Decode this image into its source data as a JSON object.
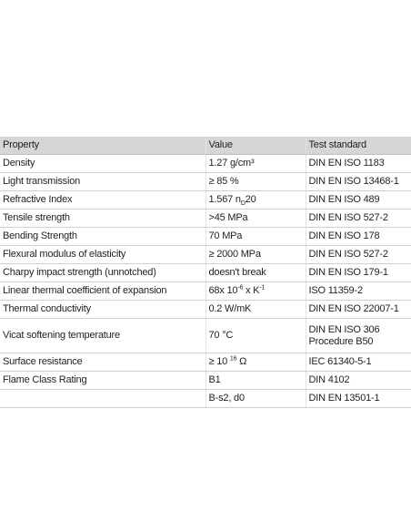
{
  "table": {
    "header": [
      "Property",
      "Value",
      "Test standard"
    ],
    "rows": [
      [
        "Density",
        "1.27 g/cm³",
        "DIN EN ISO 1183"
      ],
      [
        "Light transmission",
        "≥ 85 %",
        "DIN EN ISO 13468-1"
      ],
      [
        "Refractive Index",
        {
          "runs": [
            {
              "text": "1.567 n"
            },
            {
              "text": "D",
              "sub": true
            },
            {
              "text": "20"
            }
          ]
        },
        "DIN EN ISO 489"
      ],
      [
        "Tensile strength",
        ">45 MPa",
        "DIN EN ISO 527-2"
      ],
      [
        "Bending Strength",
        "70 MPa",
        "DIN EN ISO 178"
      ],
      [
        "Flexural modulus of elasticity",
        "≥ 2000 MPa",
        "DIN EN ISO 527-2"
      ],
      [
        "Charpy impact strength (unnotched)",
        "doesn't break",
        "DIN EN ISO 179-1"
      ],
      [
        "Linear thermal coefficient of expansion",
        {
          "runs": [
            {
              "text": "68x 10"
            },
            {
              "text": "-6",
              "sup": true
            },
            {
              "text": " x K"
            },
            {
              "text": "-1",
              "sup": true
            }
          ]
        },
        "ISO 11359-2"
      ],
      [
        "Thermal conductivity",
        "0.2 W/mK",
        "DIN EN ISO 22007-1"
      ],
      [
        "Vicat softening temperature",
        "70 °C",
        {
          "lines": [
            "DIN EN ISO 306",
            "Procedure B50"
          ]
        }
      ],
      [
        "Surface resistance",
        {
          "runs": [
            {
              "text": "≥ 10 "
            },
            {
              "text": "16",
              "sup": true
            },
            {
              "text": " Ω"
            }
          ]
        },
        "IEC 61340-5-1"
      ],
      [
        "Flame Class Rating",
        "B1",
        "DIN 4102"
      ],
      [
        null,
        "B-s2, d0",
        "DIN EN 13501-1"
      ]
    ]
  }
}
